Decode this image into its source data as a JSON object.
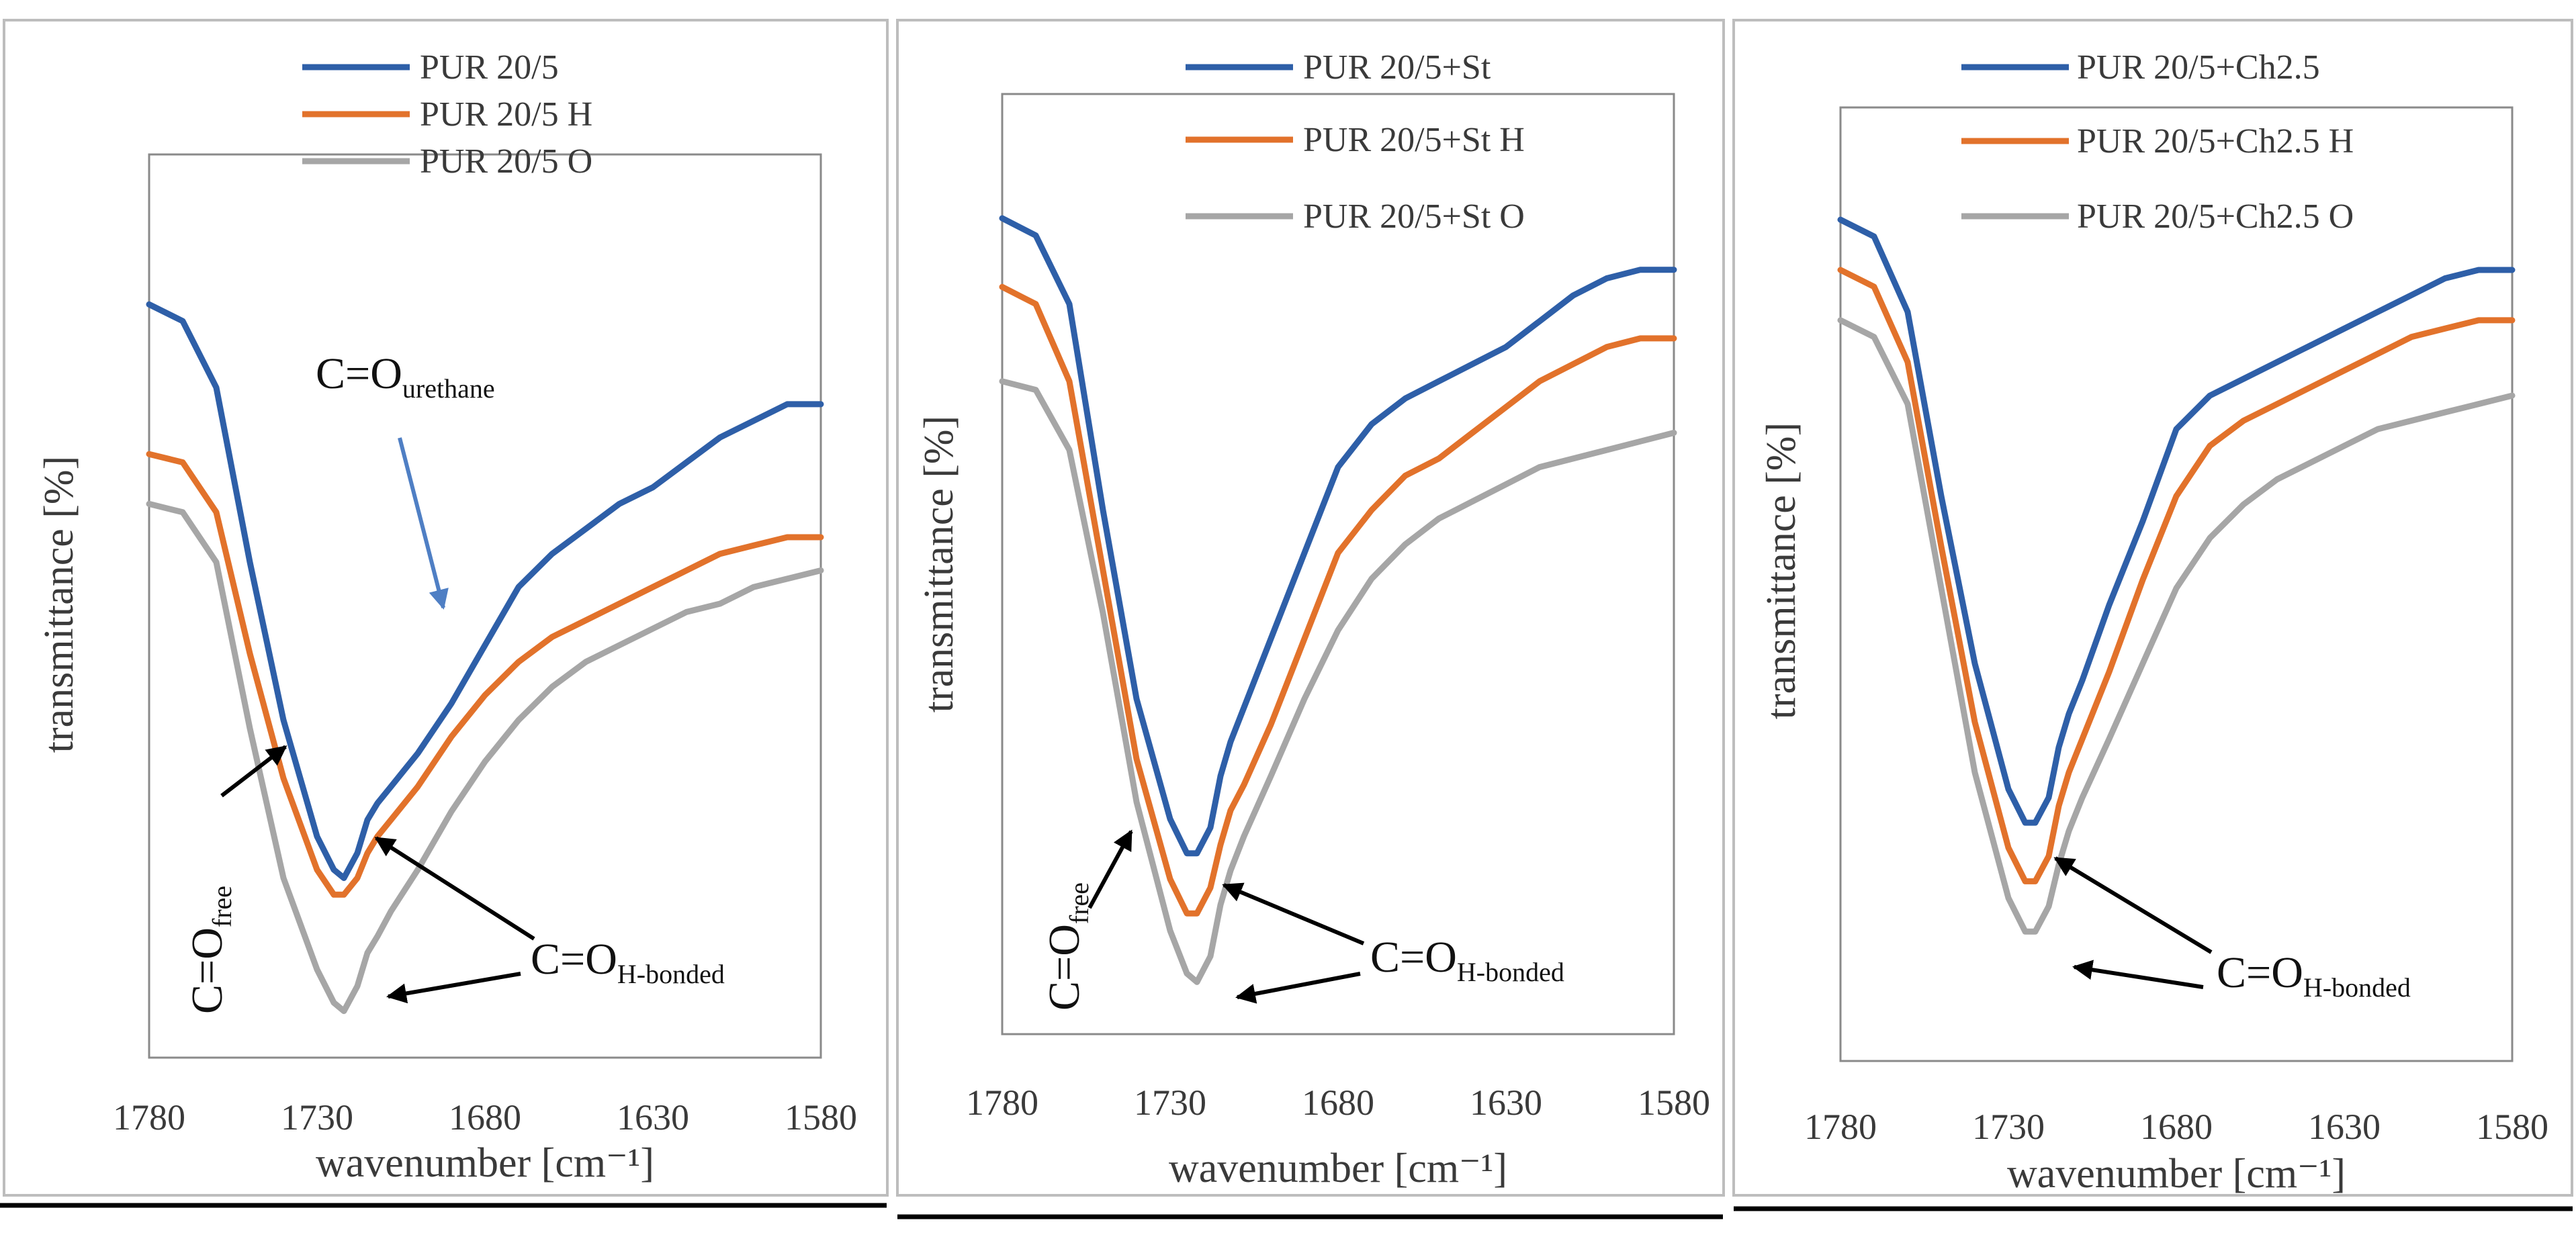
{
  "colors": {
    "blue": "#2e5fa8",
    "orange": "#e2722b",
    "gray": "#a6a6a6",
    "arrow_blue": "#4f7fc4",
    "arrow_black": "#000000"
  },
  "chart_data": [
    {
      "type": "line",
      "title": "",
      "xlabel": "wavenumber [cm⁻¹]",
      "ylabel": "transmittance [%]",
      "xlim": [
        1780,
        1580
      ],
      "ylim": [
        0,
        100
      ],
      "xticks": [
        "1780",
        "1730",
        "1680",
        "1630",
        "1580"
      ],
      "x": [
        1780,
        1770,
        1760,
        1750,
        1740,
        1730,
        1725,
        1722,
        1718,
        1715,
        1712,
        1708,
        1700,
        1690,
        1680,
        1670,
        1660,
        1650,
        1640,
        1630,
        1620,
        1610,
        1600,
        1590,
        1580
      ],
      "series": [
        {
          "name": "PUR 20/5",
          "color": "#2e5fa8",
          "values": [
            86,
            84,
            76,
            55,
            36,
            22,
            18,
            17,
            20,
            24,
            26,
            28,
            32,
            38,
            45,
            52,
            56,
            59,
            62,
            64,
            67,
            70,
            72,
            74,
            74
          ]
        },
        {
          "name": "PUR 20/5 H",
          "color": "#e2722b",
          "values": [
            68,
            67,
            61,
            44,
            29,
            18,
            15,
            15,
            17,
            20,
            22,
            24,
            28,
            34,
            39,
            43,
            46,
            48,
            50,
            52,
            54,
            56,
            57,
            58,
            58
          ]
        },
        {
          "name": "PUR 20/5 O",
          "color": "#a6a6a6",
          "values": [
            62,
            61,
            55,
            35,
            17,
            6,
            2,
            1,
            4,
            8,
            10,
            13,
            18,
            25,
            31,
            36,
            40,
            43,
            45,
            47,
            49,
            50,
            52,
            53,
            54
          ]
        }
      ],
      "annotations": [
        {
          "main": "C=O",
          "sub": "urethane"
        },
        {
          "main": "C=O",
          "sub": "free"
        },
        {
          "main": "C=O",
          "sub": "H-bonded"
        }
      ]
    },
    {
      "type": "line",
      "title": "",
      "xlabel": "wavenumber [cm⁻¹]",
      "ylabel": "transmittance [%]",
      "xlim": [
        1780,
        1580
      ],
      "ylim": [
        0,
        100
      ],
      "xticks": [
        "1780",
        "1730",
        "1680",
        "1630",
        "1580"
      ],
      "x": [
        1780,
        1770,
        1760,
        1750,
        1740,
        1730,
        1725,
        1722,
        1718,
        1715,
        1712,
        1708,
        1700,
        1690,
        1680,
        1670,
        1660,
        1650,
        1640,
        1630,
        1620,
        1610,
        1600,
        1590,
        1580
      ],
      "series": [
        {
          "name": "PUR 20/5+St",
          "color": "#2e5fa8",
          "values": [
            91,
            89,
            81,
            57,
            35,
            21,
            17,
            17,
            20,
            26,
            30,
            34,
            42,
            52,
            62,
            67,
            70,
            72,
            74,
            76,
            79,
            82,
            84,
            85,
            85
          ]
        },
        {
          "name": "PUR 20/5+St H",
          "color": "#e2722b",
          "values": [
            83,
            81,
            72,
            50,
            28,
            14,
            10,
            10,
            13,
            18,
            22,
            25,
            32,
            42,
            52,
            57,
            61,
            63,
            66,
            69,
            72,
            74,
            76,
            77,
            77
          ]
        },
        {
          "name": "PUR 20/5+St O",
          "color": "#a6a6a6",
          "values": [
            72,
            71,
            64,
            45,
            23,
            8,
            3,
            2,
            5,
            11,
            15,
            19,
            26,
            35,
            43,
            49,
            53,
            56,
            58,
            60,
            62,
            63,
            64,
            65,
            66
          ]
        }
      ],
      "annotations": [
        {
          "main": "C=O",
          "sub": "free"
        },
        {
          "main": "C=O",
          "sub": "H-bonded"
        }
      ]
    },
    {
      "type": "line",
      "title": "",
      "xlabel": "wavenumber [cm⁻¹]",
      "ylabel": "transmittance [%]",
      "xlim": [
        1780,
        1580
      ],
      "ylim": [
        0,
        100
      ],
      "xticks": [
        "1780",
        "1730",
        "1680",
        "1630",
        "1580"
      ],
      "x": [
        1780,
        1770,
        1760,
        1750,
        1740,
        1730,
        1725,
        1722,
        1718,
        1715,
        1712,
        1708,
        1700,
        1690,
        1680,
        1670,
        1660,
        1650,
        1640,
        1630,
        1620,
        1610,
        1600,
        1590,
        1580
      ],
      "series": [
        {
          "name": "PUR 20/5+Ch2.5",
          "color": "#2e5fa8",
          "values": [
            91,
            89,
            80,
            58,
            38,
            23,
            19,
            19,
            22,
            28,
            32,
            36,
            45,
            55,
            66,
            70,
            72,
            74,
            76,
            78,
            80,
            82,
            84,
            85,
            85
          ]
        },
        {
          "name": "PUR 20/5+Ch2.5 H",
          "color": "#e2722b",
          "values": [
            85,
            83,
            74,
            52,
            31,
            16,
            12,
            12,
            15,
            21,
            25,
            29,
            37,
            48,
            58,
            64,
            67,
            69,
            71,
            73,
            75,
            77,
            78,
            79,
            79
          ]
        },
        {
          "name": "PUR 20/5+Ch2.5 O",
          "color": "#a6a6a6",
          "values": [
            79,
            77,
            69,
            47,
            25,
            10,
            6,
            6,
            9,
            14,
            18,
            22,
            29,
            38,
            47,
            53,
            57,
            60,
            62,
            64,
            66,
            67,
            68,
            69,
            70
          ]
        }
      ],
      "annotations": [
        {
          "main": "C=O",
          "sub": "H-bonded"
        }
      ]
    }
  ]
}
